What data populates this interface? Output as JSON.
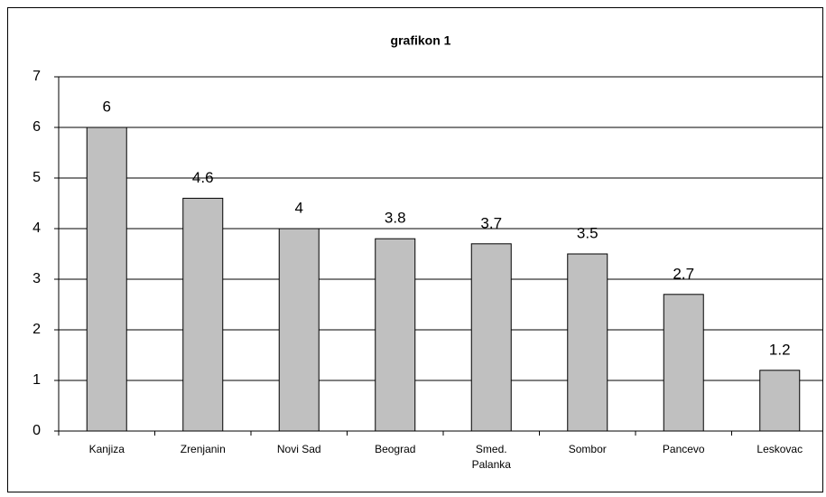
{
  "chart_data": {
    "type": "bar",
    "title": "grafikon 1",
    "categories": [
      "Kanjiza",
      "Zrenjanin",
      "Novi Sad",
      "Beograd",
      "Smed.\nPalanka",
      "Sombor",
      "Pancevo",
      "Leskovac"
    ],
    "values": [
      6,
      4.6,
      4,
      3.8,
      3.7,
      3.5,
      2.7,
      1.2
    ],
    "color": "#c0c0c0",
    "ylim": [
      0,
      7
    ],
    "yticks": [
      0,
      1,
      2,
      3,
      4,
      5,
      6,
      7
    ],
    "grid": true
  }
}
